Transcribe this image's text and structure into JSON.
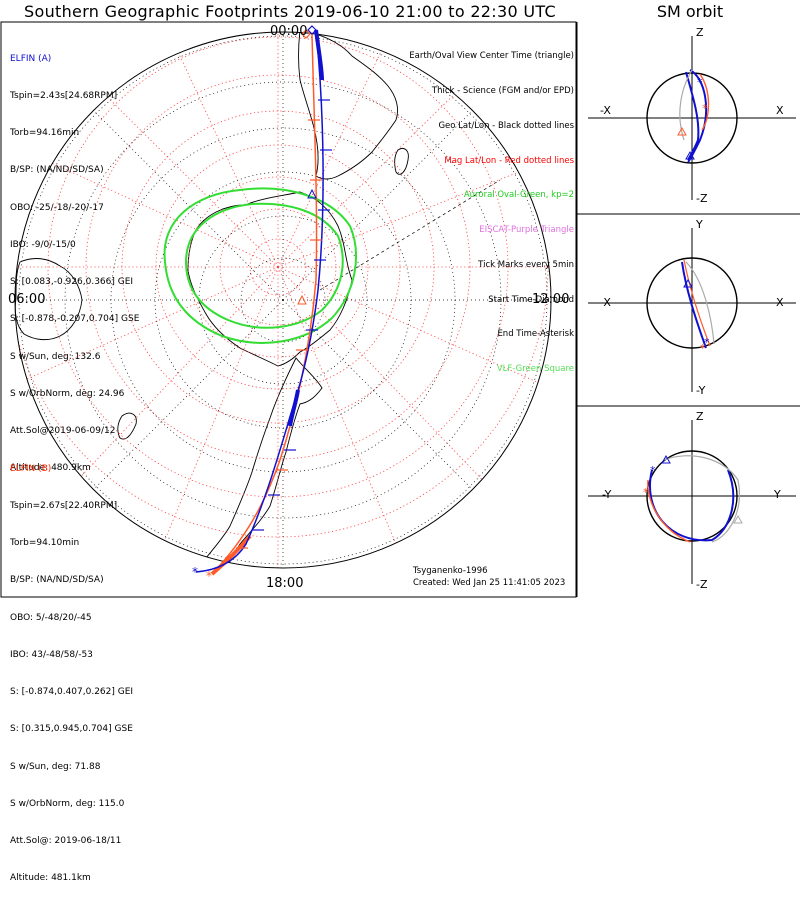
{
  "title": "Southern Geographic Footprints 2019-06-10 21:00 to 22:30 UTC",
  "sm_title": "SM orbit",
  "elfin_a": {
    "name": "ELFIN (A)",
    "lines": [
      "Tspin=2.43s[24.68RPM]",
      "Torb=94.16min",
      "B/SP: (NA/ND/SD/SA)",
      "OBO: -25/-18/-20/-17",
      "IBO: -9/0/-15/0",
      "S: [0.083,-0.926,0.366] GEI",
      "S: [-0.878,-0.207,0.704] GSE",
      "S w/Sun, deg: 132.6",
      "S w/OrbNorm, deg: 24.96",
      "Att.Sol@2019-06-09/12",
      "Altitude: 480.9km"
    ]
  },
  "elfin_b": {
    "name": "ELFIN (B)",
    "lines": [
      "Tspin=2.67s[22.40RPM]",
      "Torb=94.10min",
      "B/SP: (NA/ND/SD/SA)",
      "OBO: 5/-48/20/-45",
      "IBO: 43/-48/58/-53",
      "S: [-0.874,0.407,0.262] GEI",
      "S: [0.315,0.945,0.704] GSE",
      "S w/Sun, deg: 71.88",
      "S w/OrbNorm, deg: 115.0",
      "Att.Sol@: 2019-06-18/11",
      "Altitude: 481.1km"
    ]
  },
  "legend": [
    {
      "text": "Earth/Oval View Center Time (triangle)",
      "color": "#000000"
    },
    {
      "text": "Thick - Science (FGM and/or EPD)",
      "color": "#000000"
    },
    {
      "text": "Geo Lat/Lon - Black dotted lines",
      "color": "#000000"
    },
    {
      "text": "Mag Lat/Lon - Red dotted lines",
      "color": "#ff0000"
    },
    {
      "text": "Auroral Oval-Green, kp=2",
      "color": "#22cc22"
    },
    {
      "text": "EISCAT-Purple Triangle",
      "color": "#e070e0"
    },
    {
      "text": "Tick Marks every 5min",
      "color": "#000000"
    },
    {
      "text": "Start Time-Diamond",
      "color": "#000000"
    },
    {
      "text": "End Time-Asterisk",
      "color": "#000000"
    },
    {
      "text": "VLF-Green Square",
      "color": "#55dd55"
    }
  ],
  "model_note": "Tsyganenko-1996",
  "created_note": "Created: Wed Jan 25 11:41:05 2023",
  "time_labels": {
    "top": "00:00",
    "left": "06:00",
    "right": "12:00",
    "bottom": "18:00"
  },
  "sm_panels": [
    {
      "top": "Z",
      "bottom": "-Z",
      "left": "-X",
      "right": "X"
    },
    {
      "top": "Y",
      "bottom": "-Y",
      "left": "-X",
      "right": "X"
    },
    {
      "top": "Z",
      "bottom": "-Z",
      "left": "-Y",
      "right": "Y"
    }
  ],
  "colors": {
    "elfin_a": "#1010d0",
    "elfin_b": "#ff5a2a",
    "oval": "#33dd33",
    "mag_grid": "#ff4040",
    "land": "#000000"
  },
  "chart_data": {
    "type": "line",
    "title": "Southern Geographic Footprints 2019-06-10 21:00 to 22:30 UTC",
    "projection": "polar, south pole centered, MLT at rim",
    "series": [
      {
        "name": "ELFIN (A)",
        "color": "#1010d0"
      },
      {
        "name": "ELFIN (B)",
        "color": "#ff5a2a"
      }
    ],
    "mlt_labels": [
      "00:00",
      "06:00",
      "12:00",
      "18:00"
    ],
    "latitude_rings_deg": [
      -80,
      -70,
      -60,
      -50,
      -40,
      -30,
      -20,
      -10,
      0
    ],
    "auroral_oval_kp": 2
  }
}
